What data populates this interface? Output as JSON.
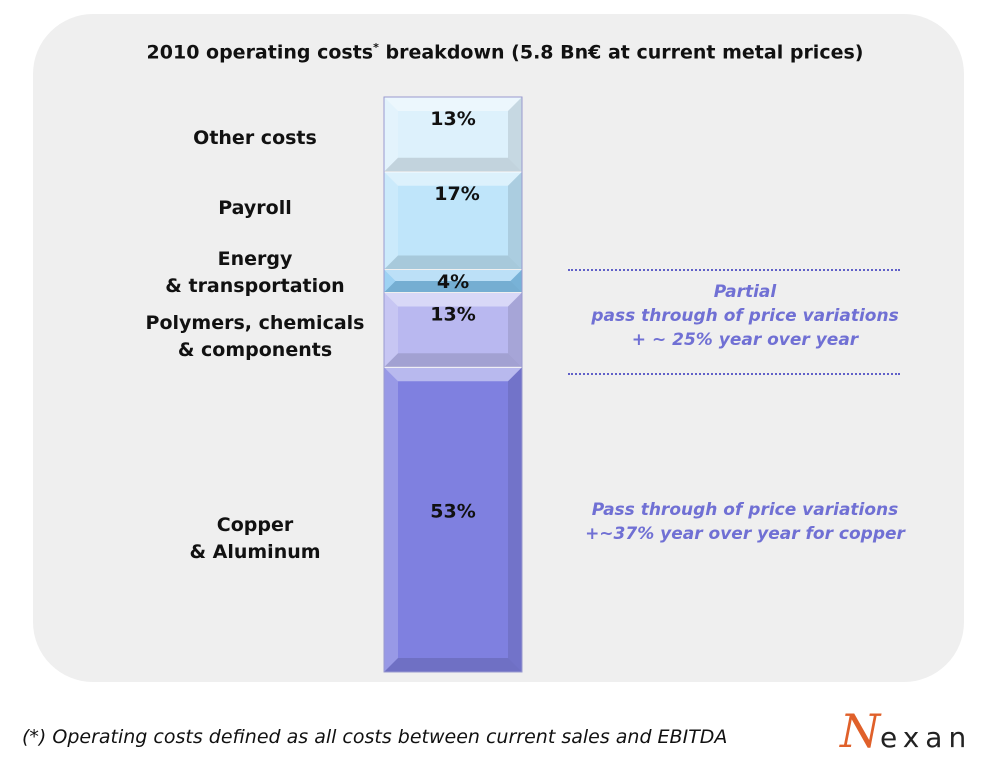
{
  "chart_data": {
    "type": "bar",
    "stacked": true,
    "title": "2010 operating costs",
    "title_mark": "*",
    "title_rest": " breakdown (5.8 Bn€ at current metal prices)",
    "ylim": [
      0,
      100
    ],
    "segments": [
      {
        "category": "Copper\n& Aluminum",
        "value": 53,
        "label": "53%",
        "color": "#7f80e0"
      },
      {
        "category": "Polymers, chemicals\n& components",
        "value": 13,
        "label": "13%",
        "color": "#b9b8f0"
      },
      {
        "category": "Energy\n& transportation",
        "value": 4,
        "label": "4%",
        "color": "#86c7f0"
      },
      {
        "category": "Payroll",
        "value": 17,
        "label": "17%",
        "color": "#bfe5fa"
      },
      {
        "category": "Other costs",
        "value": 13,
        "label": "13%",
        "color": "#ddf1fc"
      }
    ],
    "annotations": {
      "partial": "Partial\npass through of price variations\n+ ~ 25% year over year",
      "copper": "Pass through of price variations\n+~37% year over year for copper"
    }
  },
  "footnote": "(*) Operating costs defined as all costs between current sales and EBITDA",
  "logo": {
    "text": "exan",
    "letter": "N",
    "letter_color": "#e0602a",
    "text_color": "#222222"
  }
}
